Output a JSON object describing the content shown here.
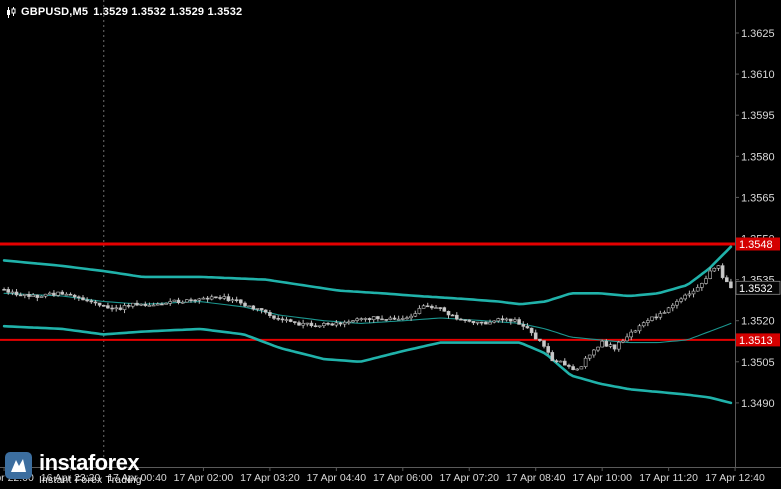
{
  "header": {
    "symbol": "GBPUSD,M5",
    "ohlc": "1.3529 1.3532 1.3529 1.3532"
  },
  "y_axis": {
    "ticks": [
      "1.3625",
      "1.3610",
      "1.3595",
      "1.3580",
      "1.3565",
      "1.3550",
      "1.3535",
      "1.3520",
      "1.3505",
      "1.3490"
    ]
  },
  "x_axis": {
    "labels": [
      "16 Apr 22:00",
      "16 Apr 23:20",
      "17 Apr 00:40",
      "17 Apr 02:00",
      "17 Apr 03:20",
      "17 Apr 04:40",
      "17 Apr 06:00",
      "17 Apr 07:20",
      "17 Apr 08:40",
      "17 Apr 10:00",
      "17 Apr 11:20",
      "17 Apr 12:40"
    ]
  },
  "current_price_tag": "1.3532",
  "watermark": {
    "brand": "instaforex",
    "tagline": "Instant Forex Trading"
  },
  "colors": {
    "background": "#000000",
    "axis_text": "#d9d9d9",
    "axis_line": "#5a5a5a",
    "separator": "#6e6e6e",
    "band": "#20b2aa",
    "band_mid": "#1b968f",
    "level": "#e60000",
    "tag_level_bg": "#d40000",
    "tag_price_bg": "#050505",
    "tag_price_border": "#8a8a8a",
    "tag_text": "#ffffff",
    "candle_up": "#000000",
    "candle_down": "#c9c9c9",
    "candle_wick": "#bdbdbd",
    "logo_blue": "#3c6e9f"
  },
  "chart_data": {
    "type": "candlestick",
    "symbol": "GBPUSD",
    "timeframe": "M5",
    "title": "GBPUSD,M5 1.3529 1.3532 1.3529 1.3532",
    "time_start": "16 Apr 22:00",
    "time_end": "17 Apr 12:40",
    "candles_count": 176,
    "day_separator_index": 24,
    "last_price": 1.3532,
    "ylim": [
      1.3467,
      1.3637
    ],
    "y_ticks": [
      1.3625,
      1.361,
      1.3595,
      1.358,
      1.3565,
      1.355,
      1.3535,
      1.352,
      1.3505,
      1.349
    ],
    "levels": [
      {
        "label": "1.3548",
        "price": 1.3548,
        "role": "resistance"
      },
      {
        "label": "1.3513",
        "price": 1.3513,
        "role": "support"
      }
    ],
    "close_path": [
      [
        0,
        1.3531
      ],
      [
        0.007,
        1.353
      ],
      [
        0.041,
        1.3529
      ],
      [
        0.082,
        1.353
      ],
      [
        0.123,
        1.3527
      ],
      [
        0.15,
        1.3524
      ],
      [
        0.178,
        1.3526
      ],
      [
        0.205,
        1.3525
      ],
      [
        0.232,
        1.3527
      ],
      [
        0.266,
        1.3528
      ],
      [
        0.294,
        1.3529
      ],
      [
        0.321,
        1.3527
      ],
      [
        0.348,
        1.3524
      ],
      [
        0.376,
        1.3521
      ],
      [
        0.403,
        1.3519
      ],
      [
        0.43,
        1.3518
      ],
      [
        0.458,
        1.3519
      ],
      [
        0.485,
        1.352
      ],
      [
        0.512,
        1.3521
      ],
      [
        0.54,
        1.352
      ],
      [
        0.56,
        1.3522
      ],
      [
        0.581,
        1.3526
      ],
      [
        0.601,
        1.3524
      ],
      [
        0.622,
        1.3521
      ],
      [
        0.642,
        1.352
      ],
      [
        0.663,
        1.3519
      ],
      [
        0.683,
        1.3521
      ],
      [
        0.704,
        1.352
      ],
      [
        0.721,
        1.3517
      ],
      [
        0.738,
        1.3512
      ],
      [
        0.754,
        1.3506
      ],
      [
        0.772,
        1.3504
      ],
      [
        0.79,
        1.3502
      ],
      [
        0.806,
        1.3508
      ],
      [
        0.822,
        1.3512
      ],
      [
        0.84,
        1.351
      ],
      [
        0.858,
        1.3515
      ],
      [
        0.874,
        1.3518
      ],
      [
        0.891,
        1.3521
      ],
      [
        0.908,
        1.3523
      ],
      [
        0.926,
        1.3527
      ],
      [
        0.943,
        1.353
      ],
      [
        0.956,
        1.3533
      ],
      [
        0.97,
        1.3537
      ],
      [
        0.981,
        1.3541
      ],
      [
        0.989,
        1.3536
      ],
      [
        1,
        1.3532
      ]
    ],
    "bollinger_upper": [
      [
        0,
        1.3542
      ],
      [
        0.08,
        1.354
      ],
      [
        0.14,
        1.3538
      ],
      [
        0.19,
        1.3536
      ],
      [
        0.27,
        1.3536
      ],
      [
        0.36,
        1.3535
      ],
      [
        0.41,
        1.3533
      ],
      [
        0.46,
        1.3531
      ],
      [
        0.52,
        1.353
      ],
      [
        0.57,
        1.3529
      ],
      [
        0.63,
        1.3528
      ],
      [
        0.68,
        1.3527
      ],
      [
        0.71,
        1.3526
      ],
      [
        0.745,
        1.3527
      ],
      [
        0.78,
        1.353
      ],
      [
        0.82,
        1.353
      ],
      [
        0.86,
        1.3529
      ],
      [
        0.9,
        1.353
      ],
      [
        0.94,
        1.3533
      ],
      [
        0.97,
        1.3539
      ],
      [
        1,
        1.3547
      ]
    ],
    "bollinger_middle": [
      [
        0,
        1.353
      ],
      [
        0.08,
        1.3529
      ],
      [
        0.137,
        1.3527
      ],
      [
        0.19,
        1.3526
      ],
      [
        0.27,
        1.3527
      ],
      [
        0.33,
        1.3525
      ],
      [
        0.38,
        1.3522
      ],
      [
        0.44,
        1.352
      ],
      [
        0.49,
        1.3519
      ],
      [
        0.55,
        1.352
      ],
      [
        0.6,
        1.3521
      ],
      [
        0.66,
        1.352
      ],
      [
        0.71,
        1.3519
      ],
      [
        0.745,
        1.3517
      ],
      [
        0.78,
        1.3514
      ],
      [
        0.82,
        1.3513
      ],
      [
        0.86,
        1.3512
      ],
      [
        0.9,
        1.3512
      ],
      [
        0.94,
        1.3513
      ],
      [
        0.97,
        1.3516
      ],
      [
        1,
        1.3519
      ]
    ],
    "bollinger_lower": [
      [
        0,
        1.3518
      ],
      [
        0.08,
        1.3517
      ],
      [
        0.137,
        1.3515
      ],
      [
        0.19,
        1.3516
      ],
      [
        0.27,
        1.3517
      ],
      [
        0.33,
        1.3515
      ],
      [
        0.38,
        1.351
      ],
      [
        0.44,
        1.3506
      ],
      [
        0.49,
        1.3505
      ],
      [
        0.55,
        1.3509
      ],
      [
        0.6,
        1.3512
      ],
      [
        0.66,
        1.3512
      ],
      [
        0.71,
        1.3512
      ],
      [
        0.745,
        1.3508
      ],
      [
        0.78,
        1.35
      ],
      [
        0.82,
        1.3497
      ],
      [
        0.86,
        1.3495
      ],
      [
        0.9,
        1.3494
      ],
      [
        0.94,
        1.3493
      ],
      [
        0.97,
        1.3492
      ],
      [
        1,
        1.349
      ]
    ]
  }
}
